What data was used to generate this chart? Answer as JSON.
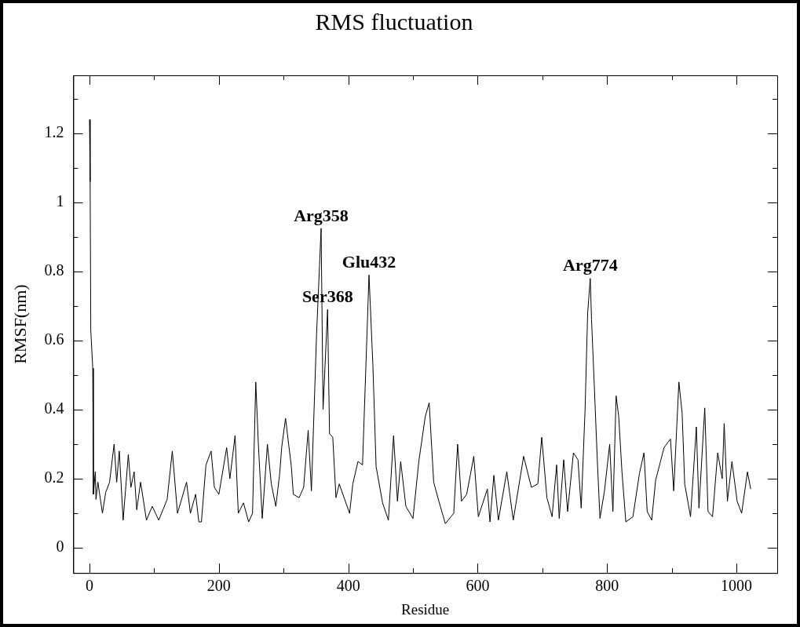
{
  "chart_data": {
    "type": "line",
    "title": "RMS fluctuation",
    "xlabel": "Residue",
    "ylabel": "RMSF(nm)",
    "xlim": [
      -25,
      1063
    ],
    "ylim": [
      -0.073,
      1.368
    ],
    "xticks": [
      0,
      {
        "value": 100,
        "label": null
      },
      200,
      {
        "value": 300,
        "label": null
      },
      400,
      {
        "value": 500,
        "label": null
      },
      600,
      {
        "value": 700,
        "label": null
      },
      800,
      {
        "value": 900,
        "label": null
      },
      1000
    ],
    "yticks": [
      0,
      {
        "value": 0.1,
        "label": null
      },
      0.2,
      {
        "value": 0.3,
        "label": null
      },
      0.4,
      {
        "value": 0.5,
        "label": null
      },
      0.6,
      {
        "value": 0.7,
        "label": null
      },
      0.8,
      {
        "value": 0.9,
        "label": null
      },
      1,
      {
        "value": 1.1,
        "label": null
      },
      1.2,
      {
        "value": 1.3,
        "label": null
      }
    ],
    "grid": false,
    "legend": false,
    "marker": "none",
    "line_style": "solid",
    "annotations": [
      {
        "text": "Arg358",
        "x": 358,
        "y": 0.925
      },
      {
        "text": "Ser368",
        "x": 368,
        "y": 0.69
      },
      {
        "text": "Glu432",
        "x": 432,
        "y": 0.79
      },
      {
        "text": "Arg774",
        "x": 774,
        "y": 0.78
      }
    ],
    "series": [
      {
        "color": "#000000",
        "x": [
          0,
          1,
          2,
          5,
          6,
          9,
          10,
          13,
          20,
          25,
          31,
          38,
          42,
          46,
          52,
          60,
          64,
          69,
          73,
          79,
          88,
          97,
          107,
          120,
          128,
          136,
          150,
          156,
          164,
          169,
          173,
          180,
          188,
          193,
          200,
          212,
          217,
          225,
          230,
          238,
          246,
          252,
          257,
          261,
          267,
          275,
          281,
          288,
          294,
          297,
          303,
          312,
          315,
          324,
          331,
          338,
          343,
          351,
          358,
          361,
          368,
          371,
          376,
          381,
          386,
          402,
          407,
          415,
          422,
          432,
          438,
          443,
          453,
          462,
          470,
          476,
          481,
          489,
          500,
          509,
          519,
          525,
          532,
          540,
          550,
          563,
          569,
          575,
          583,
          594,
          601,
          615,
          619,
          625,
          632,
          645,
          655,
          671,
          683,
          693,
          699,
          707,
          715,
          722,
          726,
          733,
          739,
          748,
          755,
          760,
          766,
          770,
          774,
          776,
          780,
          785,
          789,
          796,
          804,
          809,
          814,
          818,
          823,
          829,
          840,
          850,
          857,
          862,
          869,
          875,
          888,
          898,
          903,
          911,
          916,
          920,
          929,
          938,
          942,
          951,
          956,
          963,
          971,
          978,
          981,
          986,
          993,
          1001,
          1008,
          1017,
          1022
        ],
        "values": [
          1.24,
          1.06,
          0.63,
          0.52,
          0.155,
          0.22,
          0.14,
          0.19,
          0.1,
          0.16,
          0.19,
          0.3,
          0.19,
          0.28,
          0.08,
          0.27,
          0.175,
          0.22,
          0.11,
          0.19,
          0.08,
          0.12,
          0.08,
          0.14,
          0.28,
          0.1,
          0.19,
          0.1,
          0.155,
          0.075,
          0.075,
          0.24,
          0.28,
          0.175,
          0.155,
          0.29,
          0.2,
          0.325,
          0.1,
          0.13,
          0.075,
          0.1,
          0.48,
          0.3,
          0.085,
          0.3,
          0.185,
          0.12,
          0.215,
          0.29,
          0.375,
          0.235,
          0.155,
          0.145,
          0.175,
          0.34,
          0.165,
          0.62,
          0.925,
          0.4,
          0.69,
          0.33,
          0.32,
          0.145,
          0.185,
          0.1,
          0.185,
          0.25,
          0.24,
          0.79,
          0.53,
          0.235,
          0.13,
          0.08,
          0.325,
          0.135,
          0.25,
          0.12,
          0.085,
          0.25,
          0.38,
          0.42,
          0.19,
          0.135,
          0.07,
          0.1,
          0.3,
          0.135,
          0.155,
          0.265,
          0.09,
          0.17,
          0.075,
          0.21,
          0.08,
          0.22,
          0.08,
          0.265,
          0.175,
          0.185,
          0.32,
          0.145,
          0.09,
          0.24,
          0.085,
          0.255,
          0.105,
          0.275,
          0.255,
          0.115,
          0.4,
          0.68,
          0.78,
          0.66,
          0.48,
          0.25,
          0.085,
          0.165,
          0.3,
          0.105,
          0.44,
          0.38,
          0.22,
          0.075,
          0.09,
          0.215,
          0.275,
          0.105,
          0.08,
          0.195,
          0.29,
          0.315,
          0.165,
          0.48,
          0.39,
          0.185,
          0.09,
          0.35,
          0.115,
          0.405,
          0.105,
          0.09,
          0.275,
          0.2,
          0.36,
          0.135,
          0.25,
          0.135,
          0.1,
          0.22,
          0.17
        ]
      }
    ]
  }
}
